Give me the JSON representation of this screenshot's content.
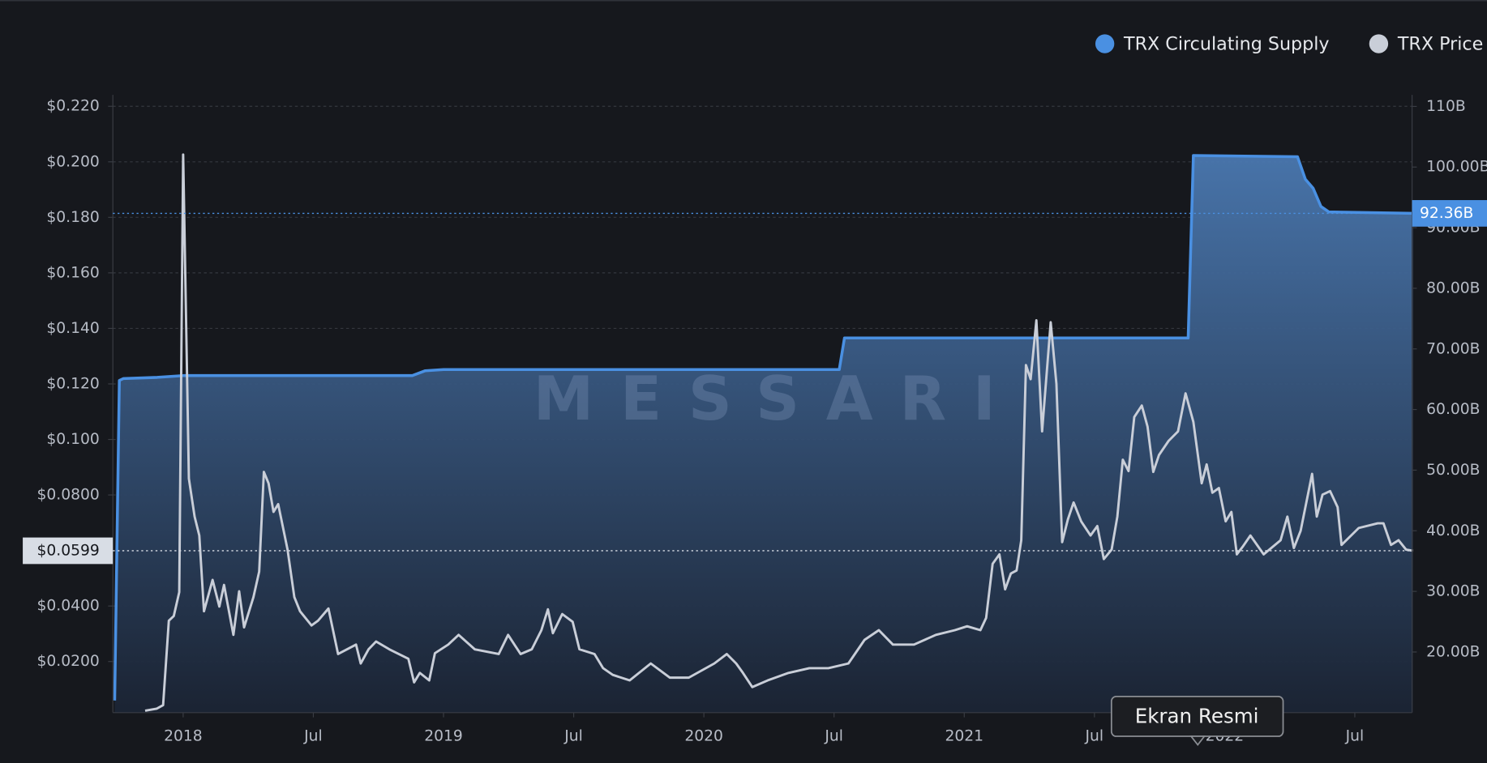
{
  "chart_data": {
    "type": "line",
    "watermark": "MESSARI",
    "overlay_label": "Ekran Resmi",
    "xlim": [
      2017.73,
      2022.72
    ],
    "xticks": [
      2018,
      {
        "value": 2018.5,
        "label": "Jul"
      },
      2019,
      {
        "value": 2019.5,
        "label": "Jul"
      },
      2020,
      {
        "value": 2020.5,
        "label": "Jul"
      },
      2021,
      {
        "value": 2021.5,
        "label": "Jul"
      },
      2022,
      {
        "value": 2022.5,
        "label": "Jul"
      }
    ],
    "ylim": [
      0.0016,
      0.2241
    ],
    "yticks": [
      {
        "value": 0.02,
        "label": "$0.0200"
      },
      {
        "value": 0.04,
        "label": "$0.0400"
      },
      {
        "value": 0.08,
        "label": "$0.0800"
      },
      {
        "value": 0.1,
        "label": "$0.100"
      },
      {
        "value": 0.12,
        "label": "$0.120"
      },
      {
        "value": 0.14,
        "label": "$0.140"
      },
      {
        "value": 0.16,
        "label": "$0.160"
      },
      {
        "value": 0.18,
        "label": "$0.180"
      },
      {
        "value": 0.2,
        "label": "$0.200"
      },
      {
        "value": 0.22,
        "label": "$0.220"
      }
    ],
    "y2lim": [
      10,
      111.9
    ],
    "y2ticks": [
      {
        "value": 20,
        "label": "20.00B"
      },
      {
        "value": 30,
        "label": "30.00B"
      },
      {
        "value": 40,
        "label": "40.00B"
      },
      {
        "value": 50,
        "label": "50.00B"
      },
      {
        "value": 60,
        "label": "60.00B"
      },
      {
        "value": 70,
        "label": "70.00B"
      },
      {
        "value": 80,
        "label": "80.00B"
      },
      {
        "value": 90,
        "label": "90.00B"
      },
      {
        "value": 100,
        "label": "100.00B"
      },
      {
        "value": 110,
        "label": "110B"
      }
    ],
    "grid": true,
    "legend": "top-right",
    "series": [
      {
        "name": "TRX Circulating Supply",
        "color": "#4a90e2",
        "axis": "y2",
        "area": true,
        "x": [
          2017.737,
          2017.755,
          2017.77,
          2017.9,
          2018.0,
          2018.88,
          2018.93,
          2019.0,
          2020.52,
          2020.54,
          2021.86,
          2021.88,
          2022.28,
          2022.31,
          2022.34,
          2022.37,
          2022.4,
          2022.723
        ],
        "values": [
          12,
          64.8,
          65.1,
          65.3,
          65.6,
          65.6,
          66.4,
          66.6,
          66.6,
          71.8,
          71.8,
          101.9,
          101.7,
          98.0,
          96.5,
          93.5,
          92.6,
          92.36
        ]
      },
      {
        "name": "TRX Price",
        "color": "#c9ced8",
        "x": [
          2017.854,
          2017.898,
          2017.923,
          2017.945,
          2017.964,
          2017.985,
          2018.0,
          2018.022,
          2018.044,
          2018.062,
          2018.08,
          2018.113,
          2018.139,
          2018.157,
          2018.193,
          2018.215,
          2018.234,
          2018.27,
          2018.292,
          2018.31,
          2018.328,
          2018.347,
          2018.365,
          2018.401,
          2018.427,
          2018.449,
          2018.493,
          2018.518,
          2018.558,
          2018.595,
          2018.664,
          2018.682,
          2018.712,
          2018.741,
          2018.792,
          2018.865,
          2018.887,
          2018.909,
          2018.945,
          2018.967,
          2019.018,
          2019.058,
          2019.12,
          2019.212,
          2019.248,
          2019.296,
          2019.339,
          2019.376,
          2019.401,
          2019.42,
          2019.456,
          2019.496,
          2019.522,
          2019.58,
          2019.613,
          2019.65,
          2019.715,
          2019.796,
          2019.869,
          2019.942,
          2020.04,
          2020.088,
          2020.124,
          2020.15,
          2020.186,
          2020.245,
          2020.325,
          2020.405,
          2020.478,
          2020.555,
          2020.617,
          2020.672,
          2020.726,
          2020.807,
          2020.891,
          2020.964,
          2021.011,
          2021.062,
          2021.084,
          2021.109,
          2021.135,
          2021.157,
          2021.179,
          2021.201,
          2021.219,
          2021.237,
          2021.255,
          2021.277,
          2021.299,
          2021.332,
          2021.354,
          2021.376,
          2021.398,
          2021.42,
          2021.449,
          2021.485,
          2021.511,
          2021.536,
          2021.566,
          2021.588,
          2021.609,
          2021.631,
          2021.653,
          2021.682,
          2021.704,
          2021.726,
          2021.748,
          2021.785,
          2021.821,
          2021.85,
          2021.88,
          2021.912,
          2021.931,
          2021.953,
          2021.978,
          2022.004,
          2022.026,
          2022.047,
          2022.069,
          2022.099,
          2022.15,
          2022.215,
          2022.241,
          2022.266,
          2022.292,
          2022.336,
          2022.354,
          2022.376,
          2022.405,
          2022.434,
          2022.449,
          2022.515,
          2022.588,
          2022.61,
          2022.639,
          2022.668,
          2022.697,
          2022.723
        ],
        "values": [
          0.0023,
          0.003,
          0.0043,
          0.0347,
          0.0364,
          0.045,
          0.2026,
          0.0859,
          0.0722,
          0.0654,
          0.0381,
          0.0494,
          0.0398,
          0.0476,
          0.0296,
          0.0453,
          0.0323,
          0.0432,
          0.0524,
          0.0883,
          0.0842,
          0.0739,
          0.0767,
          0.0603,
          0.0432,
          0.0381,
          0.033,
          0.0347,
          0.0391,
          0.0227,
          0.0261,
          0.0193,
          0.0244,
          0.0272,
          0.0244,
          0.021,
          0.0125,
          0.0159,
          0.0132,
          0.023,
          0.0261,
          0.0296,
          0.0244,
          0.0227,
          0.0296,
          0.0227,
          0.0244,
          0.0313,
          0.0388,
          0.0302,
          0.0371,
          0.0343,
          0.0244,
          0.0227,
          0.0176,
          0.0152,
          0.0132,
          0.0193,
          0.0142,
          0.0142,
          0.0193,
          0.0227,
          0.0193,
          0.0159,
          0.0108,
          0.0132,
          0.0159,
          0.0176,
          0.0176,
          0.0193,
          0.0278,
          0.0313,
          0.0261,
          0.0261,
          0.0296,
          0.0313,
          0.0327,
          0.0313,
          0.0357,
          0.0552,
          0.0586,
          0.046,
          0.0517,
          0.0528,
          0.0637,
          0.1268,
          0.1217,
          0.1429,
          0.1029,
          0.1422,
          0.12,
          0.063,
          0.0712,
          0.0773,
          0.0705,
          0.0654,
          0.0688,
          0.0569,
          0.0603,
          0.0722,
          0.0927,
          0.0886,
          0.1081,
          0.1122,
          0.1046,
          0.0883,
          0.0944,
          0.0995,
          0.1029,
          0.1166,
          0.1063,
          0.0842,
          0.091,
          0.0808,
          0.0825,
          0.0705,
          0.0739,
          0.0586,
          0.0613,
          0.0654,
          0.0586,
          0.0637,
          0.0722,
          0.0609,
          0.0671,
          0.0876,
          0.0722,
          0.0801,
          0.0814,
          0.0756,
          0.062,
          0.0681,
          0.0698,
          0.0698,
          0.062,
          0.0637,
          0.0603,
          0.0599
        ]
      }
    ],
    "annotations": [
      {
        "value": 0.0599,
        "label": "$0.0599"
      },
      {
        "value": 92.36,
        "label": "92.36B",
        "axis": "y2"
      }
    ]
  }
}
